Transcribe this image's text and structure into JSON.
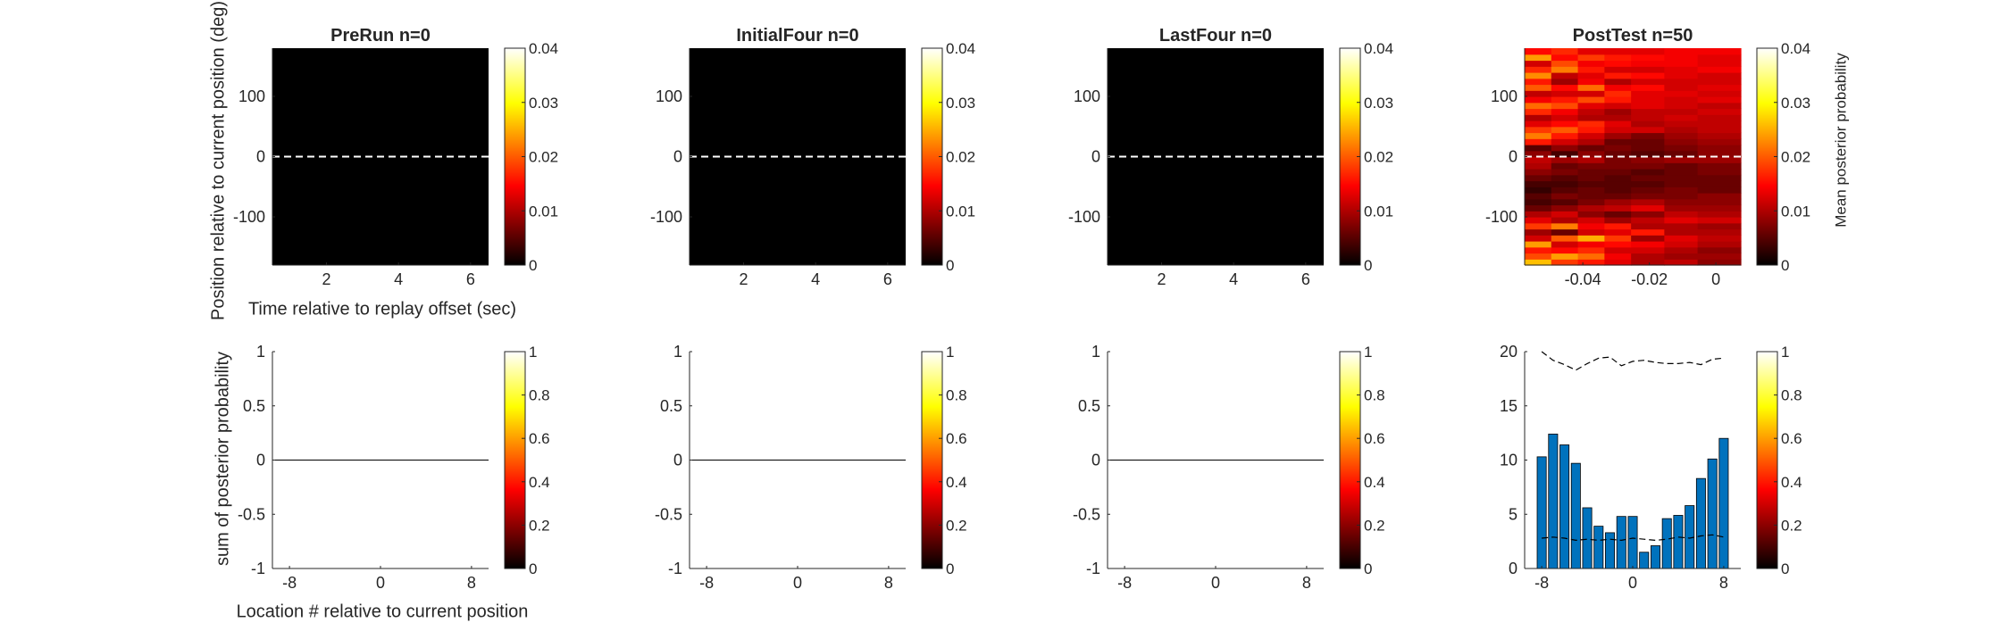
{
  "figure": {
    "ylabel_top": "Position relative to current position (deg)",
    "xlabel_top": "Time relative to replay offset (sec)",
    "ylabel_bottom": "sum of posterior probability",
    "xlabel_bottom": "Location # relative to current position",
    "colorbar_label": "Mean posterior probability"
  },
  "colors": {
    "bar_fill": "#0072BD",
    "axis": "#262626",
    "zero_line_top": "#ffffff"
  },
  "chart_data": [
    {
      "type": "heatmap",
      "title": "PreRun n=0",
      "xlim": [
        0.5,
        6.5
      ],
      "ylim": [
        -180,
        180
      ],
      "xticks": [
        2,
        4,
        6
      ],
      "yticks": [
        -100,
        0,
        100
      ],
      "all_zero": true,
      "hline_y": 0,
      "colorbar": {
        "range": [
          0,
          0.04
        ],
        "ticks": [
          0,
          0.01,
          0.02,
          0.03,
          0.04
        ],
        "colormap": "hot"
      }
    },
    {
      "type": "heatmap",
      "title": "InitialFour n=0",
      "xlim": [
        0.5,
        6.5
      ],
      "ylim": [
        -180,
        180
      ],
      "xticks": [
        2,
        4,
        6
      ],
      "yticks": [
        -100,
        0,
        100
      ],
      "all_zero": true,
      "hline_y": 0,
      "colorbar": {
        "range": [
          0,
          0.04
        ],
        "ticks": [
          0,
          0.01,
          0.02,
          0.03,
          0.04
        ],
        "colormap": "hot"
      }
    },
    {
      "type": "heatmap",
      "title": "LastFour n=0",
      "xlim": [
        0.5,
        6.5
      ],
      "ylim": [
        -180,
        180
      ],
      "xticks": [
        2,
        4,
        6
      ],
      "yticks": [
        -100,
        0,
        100
      ],
      "all_zero": true,
      "hline_y": 0,
      "colorbar": {
        "range": [
          0,
          0.04
        ],
        "ticks": [
          0,
          0.01,
          0.02,
          0.03,
          0.04
        ],
        "colormap": "hot"
      }
    },
    {
      "type": "heatmap",
      "title": "PostTest n=50",
      "xlim": [
        -0.0575,
        0.0075
      ],
      "ylim": [
        -180,
        180
      ],
      "xticks": [
        -0.04,
        -0.02,
        0
      ],
      "yticks": [
        -100,
        0,
        100
      ],
      "hline_y": 0,
      "x_edges": [
        -0.0575,
        -0.0495,
        -0.0415,
        -0.0335,
        -0.0255,
        -0.0155,
        -0.0055,
        0.0075
      ],
      "y_rows": 36,
      "values": [
        [
          0.026,
          0.018,
          0.016,
          0.013,
          0.01,
          0.011,
          0.008
        ],
        [
          0.019,
          0.024,
          0.021,
          0.014,
          0.01,
          0.009,
          0.009
        ],
        [
          0.016,
          0.015,
          0.017,
          0.012,
          0.012,
          0.01,
          0.008
        ],
        [
          0.024,
          0.012,
          0.014,
          0.015,
          0.014,
          0.012,
          0.01
        ],
        [
          0.012,
          0.02,
          0.025,
          0.018,
          0.009,
          0.013,
          0.011
        ],
        [
          0.009,
          0.006,
          0.012,
          0.013,
          0.016,
          0.01,
          0.01
        ],
        [
          0.018,
          0.022,
          0.014,
          0.016,
          0.01,
          0.01,
          0.009
        ],
        [
          0.013,
          0.01,
          0.012,
          0.009,
          0.011,
          0.013,
          0.012
        ],
        [
          0.01,
          0.012,
          0.008,
          0.006,
          0.008,
          0.011,
          0.01
        ],
        [
          0.006,
          0.008,
          0.01,
          0.011,
          0.013,
          0.009,
          0.009
        ],
        [
          0.004,
          0.005,
          0.007,
          0.009,
          0.01,
          0.008,
          0.008
        ],
        [
          0.005,
          0.007,
          0.006,
          0.006,
          0.007,
          0.007,
          0.008
        ],
        [
          0.003,
          0.005,
          0.006,
          0.005,
          0.006,
          0.007,
          0.006
        ],
        [
          0.004,
          0.004,
          0.005,
          0.005,
          0.005,
          0.006,
          0.006
        ],
        [
          0.006,
          0.005,
          0.006,
          0.005,
          0.006,
          0.006,
          0.006
        ],
        [
          0.008,
          0.007,
          0.006,
          0.006,
          0.005,
          0.006,
          0.007
        ],
        [
          0.01,
          0.006,
          0.007,
          0.007,
          0.007,
          0.006,
          0.007
        ],
        [
          0.011,
          0.009,
          0.01,
          0.007,
          0.008,
          0.009,
          0.009
        ],
        [
          0.008,
          0.004,
          0.008,
          0.006,
          0.005,
          0.006,
          0.008
        ],
        [
          0.005,
          0.008,
          0.006,
          0.007,
          0.006,
          0.007,
          0.008
        ],
        [
          0.016,
          0.012,
          0.01,
          0.006,
          0.006,
          0.008,
          0.009
        ],
        [
          0.022,
          0.016,
          0.012,
          0.009,
          0.007,
          0.009,
          0.01
        ],
        [
          0.018,
          0.02,
          0.016,
          0.012,
          0.012,
          0.01,
          0.011
        ],
        [
          0.013,
          0.015,
          0.017,
          0.013,
          0.01,
          0.011,
          0.011
        ],
        [
          0.01,
          0.012,
          0.01,
          0.01,
          0.011,
          0.012,
          0.011
        ],
        [
          0.017,
          0.014,
          0.011,
          0.009,
          0.011,
          0.011,
          0.012
        ],
        [
          0.021,
          0.019,
          0.013,
          0.012,
          0.013,
          0.012,
          0.011
        ],
        [
          0.014,
          0.016,
          0.019,
          0.016,
          0.013,
          0.012,
          0.013
        ],
        [
          0.011,
          0.012,
          0.012,
          0.017,
          0.013,
          0.013,
          0.012
        ],
        [
          0.02,
          0.015,
          0.021,
          0.014,
          0.015,
          0.012,
          0.013
        ],
        [
          0.016,
          0.009,
          0.014,
          0.01,
          0.012,
          0.012,
          0.012
        ],
        [
          0.023,
          0.011,
          0.013,
          0.016,
          0.015,
          0.013,
          0.012
        ],
        [
          0.017,
          0.022,
          0.016,
          0.012,
          0.012,
          0.013,
          0.014
        ],
        [
          0.012,
          0.019,
          0.014,
          0.015,
          0.014,
          0.014,
          0.013
        ],
        [
          0.024,
          0.015,
          0.018,
          0.016,
          0.015,
          0.014,
          0.013
        ],
        [
          0.015,
          0.017,
          0.013,
          0.013,
          0.013,
          0.014,
          0.014
        ]
      ],
      "colorbar": {
        "range": [
          0,
          0.04
        ],
        "ticks": [
          0,
          0.01,
          0.02,
          0.03,
          0.04
        ],
        "colormap": "hot"
      }
    },
    {
      "type": "bar",
      "title": "",
      "xlim": [
        -9.5,
        9.5
      ],
      "ylim": [
        -1,
        1
      ],
      "xticks": [
        -8,
        0,
        8
      ],
      "yticks": [
        -1,
        -0.5,
        0,
        0.5,
        1
      ],
      "x": [
        -8,
        -7,
        -6,
        -5,
        -4,
        -3,
        -2,
        -1,
        0,
        1,
        2,
        3,
        4,
        5,
        6,
        7,
        8
      ],
      "values": [
        0,
        0,
        0,
        0,
        0,
        0,
        0,
        0,
        0,
        0,
        0,
        0,
        0,
        0,
        0,
        0,
        0
      ],
      "colorbar": {
        "range": [
          0,
          1
        ],
        "ticks": [
          0,
          0.2,
          0.4,
          0.6,
          0.8,
          1
        ],
        "colormap": "hot"
      }
    },
    {
      "type": "bar",
      "title": "",
      "xlim": [
        -9.5,
        9.5
      ],
      "ylim": [
        -1,
        1
      ],
      "xticks": [
        -8,
        0,
        8
      ],
      "yticks": [
        -1,
        -0.5,
        0,
        0.5,
        1
      ],
      "x": [
        -8,
        -7,
        -6,
        -5,
        -4,
        -3,
        -2,
        -1,
        0,
        1,
        2,
        3,
        4,
        5,
        6,
        7,
        8
      ],
      "values": [
        0,
        0,
        0,
        0,
        0,
        0,
        0,
        0,
        0,
        0,
        0,
        0,
        0,
        0,
        0,
        0,
        0
      ],
      "colorbar": {
        "range": [
          0,
          1
        ],
        "ticks": [
          0,
          0.2,
          0.4,
          0.6,
          0.8,
          1
        ],
        "colormap": "hot"
      }
    },
    {
      "type": "bar",
      "title": "",
      "xlim": [
        -9.5,
        9.5
      ],
      "ylim": [
        -1,
        1
      ],
      "xticks": [
        -8,
        0,
        8
      ],
      "yticks": [
        -1,
        -0.5,
        0,
        0.5,
        1
      ],
      "x": [
        -8,
        -7,
        -6,
        -5,
        -4,
        -3,
        -2,
        -1,
        0,
        1,
        2,
        3,
        4,
        5,
        6,
        7,
        8
      ],
      "values": [
        0,
        0,
        0,
        0,
        0,
        0,
        0,
        0,
        0,
        0,
        0,
        0,
        0,
        0,
        0,
        0,
        0
      ],
      "colorbar": {
        "range": [
          0,
          1
        ],
        "ticks": [
          0,
          0.2,
          0.4,
          0.6,
          0.8,
          1
        ],
        "colormap": "hot"
      }
    },
    {
      "type": "bar",
      "title": "",
      "xlim": [
        -9.5,
        9.5
      ],
      "ylim": [
        0,
        20
      ],
      "xticks": [
        -8,
        0,
        8
      ],
      "yticks": [
        0,
        5,
        10,
        15,
        20
      ],
      "x": [
        -8,
        -7,
        -6,
        -5,
        -4,
        -3,
        -2,
        -1,
        0,
        1,
        2,
        3,
        4,
        5,
        6,
        7,
        8
      ],
      "values": [
        10.3,
        12.4,
        11.4,
        9.7,
        5.6,
        3.9,
        3.3,
        4.8,
        4.8,
        1.5,
        2.1,
        4.6,
        4.9,
        5.8,
        8.3,
        10.1,
        12.0
      ],
      "upper_band": [
        20.0,
        19.2,
        18.8,
        18.3,
        18.9,
        19.4,
        19.5,
        18.7,
        19.1,
        19.2,
        19.0,
        18.9,
        18.9,
        19.0,
        18.8,
        19.3,
        19.4
      ],
      "lower_band": [
        2.8,
        2.9,
        2.8,
        2.6,
        2.7,
        2.6,
        2.7,
        2.6,
        2.8,
        2.7,
        2.6,
        2.7,
        2.9,
        2.8,
        3.0,
        3.1,
        2.9
      ],
      "colorbar": {
        "range": [
          0,
          1
        ],
        "ticks": [
          0,
          0.2,
          0.4,
          0.6,
          0.8,
          1
        ],
        "colormap": "hot"
      }
    }
  ]
}
